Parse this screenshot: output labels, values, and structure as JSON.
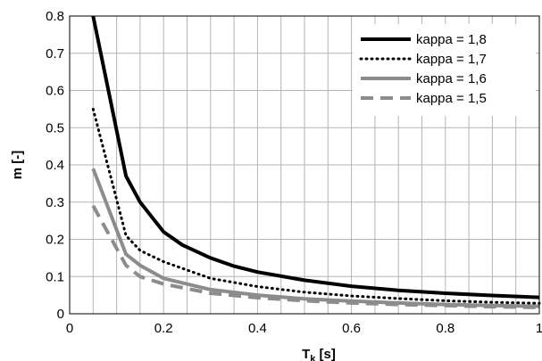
{
  "chart_data": {
    "type": "line",
    "title": "",
    "xlabel": "T",
    "xlabel_sub": "k",
    "xlabel_unit": " [s]",
    "ylabel": "m [-]",
    "xlim": [
      0,
      1
    ],
    "ylim": [
      0,
      0.8
    ],
    "x_ticks": [
      0,
      0.2,
      0.4,
      0.6,
      0.8,
      1
    ],
    "x_tick_labels": [
      "0",
      "0.2",
      "0.4",
      "0.6",
      "0.8",
      "1"
    ],
    "y_ticks": [
      0,
      0.1,
      0.2,
      0.3,
      0.4,
      0.5,
      0.6,
      0.7,
      0.8
    ],
    "y_tick_labels": [
      "0",
      "0.1",
      "0.2",
      "0.3",
      "0.4",
      "0.5",
      "0.6",
      "0.7",
      "0.8"
    ],
    "grid": true,
    "minor_grid_x_step": 0.05,
    "legend_position": "top-right",
    "series": [
      {
        "name": "kappa = 1,8",
        "color": "#000000",
        "style": "solid",
        "x": [
          0.05,
          0.12,
          0.15,
          0.2,
          0.24,
          0.3,
          0.35,
          0.4,
          0.5,
          0.6,
          0.7,
          0.8,
          0.9,
          1.0
        ],
        "y": [
          0.8,
          0.37,
          0.3,
          0.22,
          0.185,
          0.15,
          0.128,
          0.112,
          0.09,
          0.074,
          0.063,
          0.055,
          0.049,
          0.044
        ]
      },
      {
        "name": "kappa = 1,7",
        "color": "#000000",
        "style": "dotted",
        "x": [
          0.05,
          0.12,
          0.15,
          0.2,
          0.3,
          0.4,
          0.5,
          0.6,
          0.7,
          0.8,
          0.9,
          1.0
        ],
        "y": [
          0.55,
          0.21,
          0.17,
          0.14,
          0.095,
          0.073,
          0.058,
          0.048,
          0.041,
          0.035,
          0.031,
          0.028
        ]
      },
      {
        "name": "kappa = 1,6",
        "color": "#8c8c8c",
        "style": "solid",
        "x": [
          0.05,
          0.12,
          0.15,
          0.2,
          0.3,
          0.4,
          0.5,
          0.6,
          0.7,
          0.8,
          0.9,
          1.0
        ],
        "y": [
          0.39,
          0.16,
          0.13,
          0.095,
          0.065,
          0.05,
          0.04,
          0.034,
          0.029,
          0.025,
          0.022,
          0.02
        ]
      },
      {
        "name": "kappa = 1,5",
        "color": "#8c8c8c",
        "style": "dashed",
        "x": [
          0.05,
          0.12,
          0.15,
          0.2,
          0.3,
          0.4,
          0.5,
          0.6,
          0.7,
          0.8,
          0.9,
          1.0
        ],
        "y": [
          0.29,
          0.13,
          0.1,
          0.08,
          0.055,
          0.043,
          0.035,
          0.029,
          0.025,
          0.022,
          0.019,
          0.017
        ]
      }
    ]
  }
}
